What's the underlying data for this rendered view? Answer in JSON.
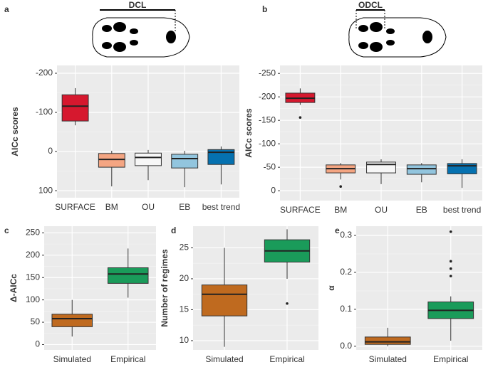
{
  "chart_data": [
    {
      "type": "box",
      "panel": "a",
      "annotation": "DCL",
      "ylabel": "AICc scores",
      "y_reversed": true,
      "categories": [
        "SURFACE",
        "BM",
        "OU",
        "EB",
        "best trend"
      ],
      "colors": [
        "#d6182e",
        "#f4a582",
        "#f7f7f7",
        "#92c5de",
        "#0571b0"
      ],
      "boxes": [
        {
          "min": -162,
          "q1": -145,
          "median": -116,
          "q3": -78,
          "max": -67
        },
        {
          "min": -2,
          "q1": 5,
          "median": 20,
          "q3": 40,
          "max": 89
        },
        {
          "min": -4,
          "q1": 4,
          "median": 15,
          "q3": 36,
          "max": 73
        },
        {
          "min": -2,
          "q1": 7,
          "median": 18,
          "q3": 42,
          "max": 91
        },
        {
          "min": -13,
          "q1": -5,
          "median": 2,
          "q3": 33,
          "max": 84
        }
      ],
      "ylim": [
        -220,
        118
      ],
      "yticks": [
        -200,
        -100,
        0,
        100
      ],
      "grid": true
    },
    {
      "type": "box",
      "panel": "b",
      "annotation": "ODCL",
      "ylabel": "AICc scores",
      "y_reversed": true,
      "categories": [
        "SURFACE",
        "BM",
        "OU",
        "EB",
        "best trend"
      ],
      "colors": [
        "#d6182e",
        "#f4a582",
        "#f7f7f7",
        "#92c5de",
        "#0571b0"
      ],
      "boxes": [
        {
          "min": -218,
          "q1": -208,
          "median": -197,
          "q3": -188,
          "max": -183,
          "outliers": [
            -156
          ]
        },
        {
          "min": -59,
          "q1": -55,
          "median": -47,
          "q3": -38,
          "max": -24,
          "outliers": [
            -9
          ]
        },
        {
          "min": -67,
          "q1": -61,
          "median": -56,
          "q3": -38,
          "max": -14
        },
        {
          "min": -59,
          "q1": -55,
          "median": -47,
          "q3": -35,
          "max": -18
        },
        {
          "min": -67,
          "q1": -58,
          "median": -53,
          "q3": -36,
          "max": -6
        }
      ],
      "ylim": [
        -267,
        21
      ],
      "yticks": [
        -250,
        -200,
        -150,
        -100,
        -50,
        0
      ],
      "grid": true
    },
    {
      "type": "box",
      "panel": "c",
      "ylabel": "Δ-AICc",
      "y_reversed": false,
      "categories": [
        "Simulated",
        "Empirical"
      ],
      "colors": [
        "#bf6a1f",
        "#1a9b5a"
      ],
      "boxes": [
        {
          "min": 18,
          "q1": 40,
          "median": 58,
          "q3": 68,
          "max": 100
        },
        {
          "min": 105,
          "q1": 137,
          "median": 158,
          "q3": 172,
          "max": 215
        }
      ],
      "ylim": [
        -12,
        265
      ],
      "yticks": [
        0,
        50,
        100,
        150,
        200,
        250
      ],
      "grid": true
    },
    {
      "type": "box",
      "panel": "d",
      "ylabel": "Number of regimes",
      "y_reversed": false,
      "categories": [
        "Simulated",
        "Empirical"
      ],
      "colors": [
        "#bf6a1f",
        "#1a9b5a"
      ],
      "boxes": [
        {
          "min": 9,
          "q1": 14,
          "median": 17.5,
          "q3": 19,
          "max": 25
        },
        {
          "min": 20,
          "q1": 22.7,
          "median": 24.5,
          "q3": 26.3,
          "max": 28,
          "outliers": [
            16
          ]
        }
      ],
      "ylim": [
        8.5,
        28.5
      ],
      "yticks": [
        10,
        15,
        20,
        25
      ],
      "grid": true
    },
    {
      "type": "box",
      "panel": "e",
      "ylabel": "α",
      "y_reversed": false,
      "categories": [
        "Simulated",
        "Empirical"
      ],
      "colors": [
        "#bf6a1f",
        "#1a9b5a"
      ],
      "boxes": [
        {
          "min": 0,
          "q1": 0.005,
          "median": 0.012,
          "q3": 0.025,
          "max": 0.05
        },
        {
          "min": 0.015,
          "q1": 0.075,
          "median": 0.097,
          "q3": 0.12,
          "max": 0.135,
          "outliers": [
            0.19,
            0.21,
            0.23,
            0.31
          ]
        }
      ],
      "ylim": [
        -0.01,
        0.325
      ],
      "yticks": [
        {
          "value": 0,
          "label": "0.0"
        },
        0.1,
        0.2,
        0.3
      ],
      "grid": true
    }
  ]
}
